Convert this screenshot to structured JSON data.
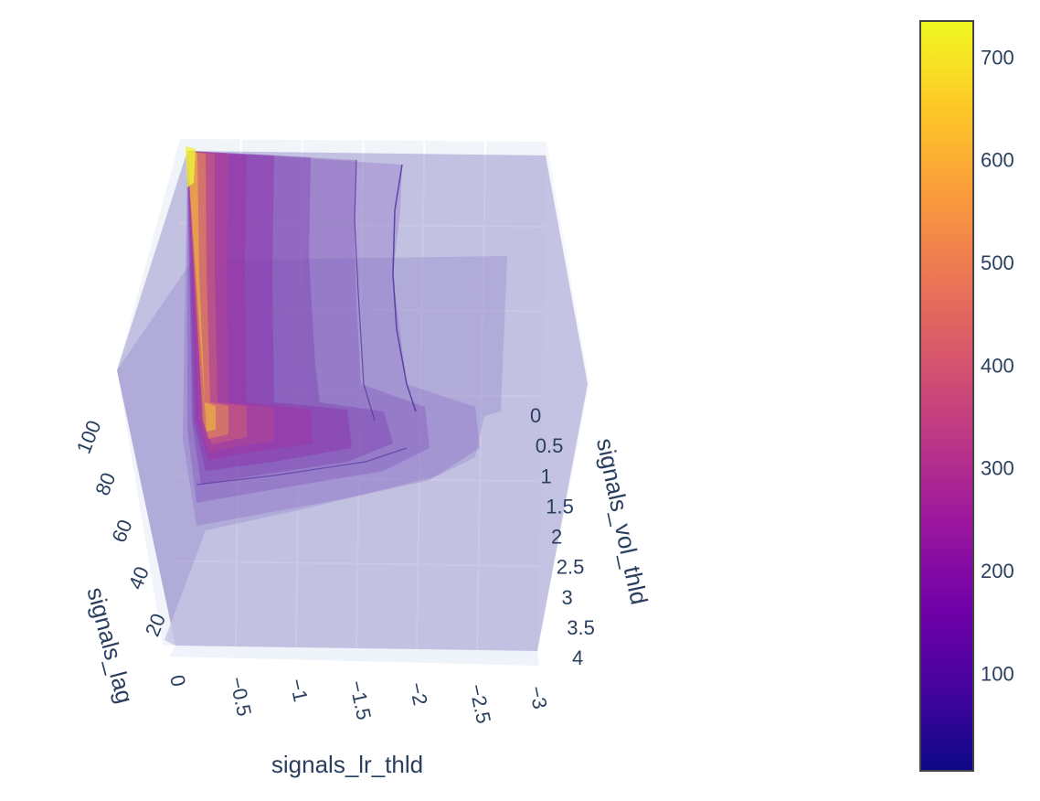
{
  "chart_data": {
    "type": "isosurface-3d",
    "title": "",
    "axes": {
      "x": {
        "label": "signals_lr_thld",
        "ticks": [
          "0",
          "−0.5",
          "−1",
          "−1.5",
          "−2",
          "−2.5",
          "−3"
        ],
        "range": [
          0,
          -3
        ]
      },
      "y": {
        "label": "signals_vol_thld",
        "ticks": [
          "0",
          "0.5",
          "1",
          "1.5",
          "2",
          "2.5",
          "3",
          "3.5",
          "4"
        ],
        "range": [
          0,
          4
        ]
      },
      "z": {
        "label": "signals_lag",
        "ticks": [
          "20",
          "40",
          "60",
          "80",
          "100"
        ],
        "range": [
          10,
          110
        ]
      }
    },
    "colorbar": {
      "colorscale": "Plasma",
      "range": [
        5,
        735
      ],
      "ticks": [
        "100",
        "200",
        "300",
        "400",
        "500",
        "600",
        "700"
      ],
      "colors": [
        "#0d0887",
        "#46039f",
        "#7201a8",
        "#9c179e",
        "#bd3786",
        "#d8576b",
        "#ed7953",
        "#fb9f3a",
        "#fdca26",
        "#f0f921"
      ]
    },
    "surface_opacity": 0.35,
    "grid": true
  }
}
